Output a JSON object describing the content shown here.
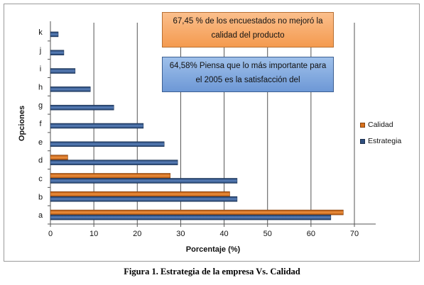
{
  "chart_data": {
    "type": "bar",
    "orientation": "horizontal",
    "categories": [
      "a",
      "b",
      "c",
      "d",
      "e",
      "f",
      "g",
      "h",
      "i",
      "j",
      "k"
    ],
    "series": [
      {
        "name": "Estrategia",
        "color": "#2f4f7f",
        "values": [
          64.58,
          43,
          43,
          29.3,
          26.2,
          21.4,
          14.6,
          9.2,
          5.7,
          3.1,
          1.8
        ]
      },
      {
        "name": "Calidad",
        "color": "#d9701c",
        "values": [
          67.45,
          41.3,
          27.6,
          4.0,
          null,
          null,
          null,
          null,
          null,
          null,
          null
        ]
      }
    ],
    "xlabel": "Porcentaje (%)",
    "ylabel": "Opciones",
    "xlim": [
      0,
      70
    ],
    "xticks": [
      "0",
      "10",
      "20",
      "30",
      "40",
      "50",
      "60",
      "70"
    ],
    "grid": true,
    "legend": "right",
    "annotations": [
      "67,45 % de los encuestados no mejoró la calidad del producto",
      "64,58% Piensa que lo más importante para el 2005 es la satisfacción del"
    ]
  },
  "caption": "Figura 1. Estrategia de la empresa Vs. Calidad"
}
